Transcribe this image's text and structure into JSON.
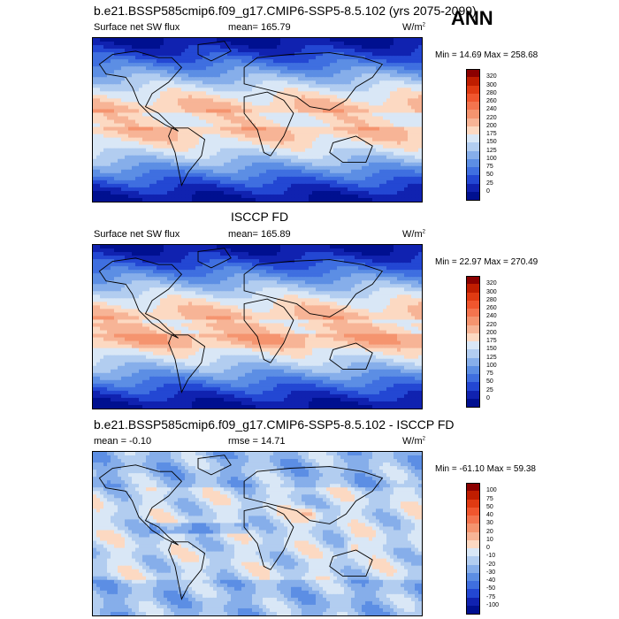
{
  "season": "ANN",
  "panels": [
    {
      "title": "b.e21.BSSP585cmip6.f09_g17.CMIP6-SSP5-8.5.102 (yrs 2075-2099)",
      "left_label": "Surface net SW flux",
      "center_label": "mean= 165.79",
      "units": "W/m",
      "units_sup": "2",
      "minmax": "Min = 14.69 Max = 258.68",
      "colorbar": {
        "labels": [
          "320",
          "300",
          "280",
          "260",
          "240",
          "220",
          "200",
          "175",
          "150",
          "125",
          "100",
          "75",
          "50",
          "25",
          "0"
        ],
        "colors": [
          "#8b0000",
          "#bf1d00",
          "#e03a12",
          "#f0562e",
          "#f4744e",
          "#f5946f",
          "#f7b496",
          "#fcd9c2",
          "#d9e7f6",
          "#b2cdf0",
          "#86aeea",
          "#5c8ee4",
          "#3f6fe0",
          "#2347d3",
          "#1022b0",
          "#001090"
        ]
      }
    },
    {
      "title": "ISCCP FD",
      "left_label": "Surface net SW flux",
      "center_label": "mean= 165.89",
      "units": "W/m",
      "units_sup": "2",
      "minmax": "Min = 22.97 Max = 270.49",
      "colorbar": {
        "labels": [
          "320",
          "300",
          "280",
          "260",
          "240",
          "220",
          "200",
          "175",
          "150",
          "125",
          "100",
          "75",
          "50",
          "25",
          "0"
        ],
        "colors": [
          "#8b0000",
          "#bf1d00",
          "#e03a12",
          "#f0562e",
          "#f4744e",
          "#f5946f",
          "#f7b496",
          "#fcd9c2",
          "#d9e7f6",
          "#b2cdf0",
          "#86aeea",
          "#5c8ee4",
          "#3f6fe0",
          "#2347d3",
          "#1022b0",
          "#001090"
        ]
      }
    },
    {
      "title": "b.e21.BSSP585cmip6.f09_g17.CMIP6-SSP5-8.5.102 - ISCCP FD",
      "left_label": "mean = -0.10",
      "center_label": "rmse = 14.71",
      "units": "W/m",
      "units_sup": "2",
      "minmax": "Min = -61.10 Max = 59.38",
      "colorbar": {
        "labels": [
          "100",
          "75",
          "50",
          "40",
          "30",
          "20",
          "10",
          "0",
          "-10",
          "-20",
          "-30",
          "-40",
          "-50",
          "-75",
          "-100"
        ],
        "colors": [
          "#8b0000",
          "#bf1d00",
          "#e03a12",
          "#f0562e",
          "#f4744e",
          "#f5946f",
          "#f7b496",
          "#fcd9c2",
          "#d9e7f6",
          "#b2cdf0",
          "#86aeea",
          "#5c8ee4",
          "#3f6fe0",
          "#2347d3",
          "#1022b0",
          "#001090"
        ]
      }
    }
  ]
}
